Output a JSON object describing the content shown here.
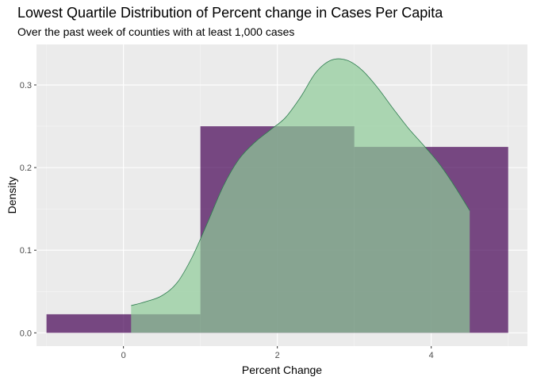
{
  "chart_data": {
    "type": "histogram+density",
    "title": "Lowest Quartile Distribution of Percent change in Cases Per Capita",
    "subtitle": "Over the past week of counties with at least 1,000 cases",
    "xlabel": "Percent Change",
    "ylabel": "Density",
    "xlim": [
      -1.13,
      5.25
    ],
    "ylim": [
      -0.016,
      0.349
    ],
    "x_ticks": [
      0,
      2,
      4
    ],
    "y_ticks": [
      0.0,
      0.1,
      0.2,
      0.3
    ],
    "y_tick_labels": [
      "0.0",
      "0.1",
      "0.2",
      "0.3"
    ],
    "grid": true,
    "histogram": {
      "color": "#440154",
      "opacity": 0.7,
      "bins": [
        {
          "x0": -1.0,
          "x1": 1.0,
          "density": 0.0225
        },
        {
          "x0": 1.0,
          "x1": 3.0,
          "density": 0.25
        },
        {
          "x0": 3.0,
          "x1": 5.0,
          "density": 0.225
        }
      ]
    },
    "density": {
      "fill": "#8fcc99",
      "stroke": "#2e7d4f",
      "opacity": 0.7,
      "x": [
        0.1,
        0.3,
        0.5,
        0.7,
        0.9,
        1.1,
        1.3,
        1.5,
        1.7,
        1.9,
        2.1,
        2.3,
        2.5,
        2.7,
        2.9,
        3.1,
        3.3,
        3.5,
        3.7,
        3.9,
        4.1,
        4.3,
        4.5
      ],
      "y": [
        0.033,
        0.038,
        0.045,
        0.061,
        0.093,
        0.135,
        0.178,
        0.21,
        0.23,
        0.245,
        0.26,
        0.285,
        0.315,
        0.33,
        0.33,
        0.318,
        0.297,
        0.272,
        0.248,
        0.227,
        0.205,
        0.178,
        0.148
      ]
    }
  }
}
